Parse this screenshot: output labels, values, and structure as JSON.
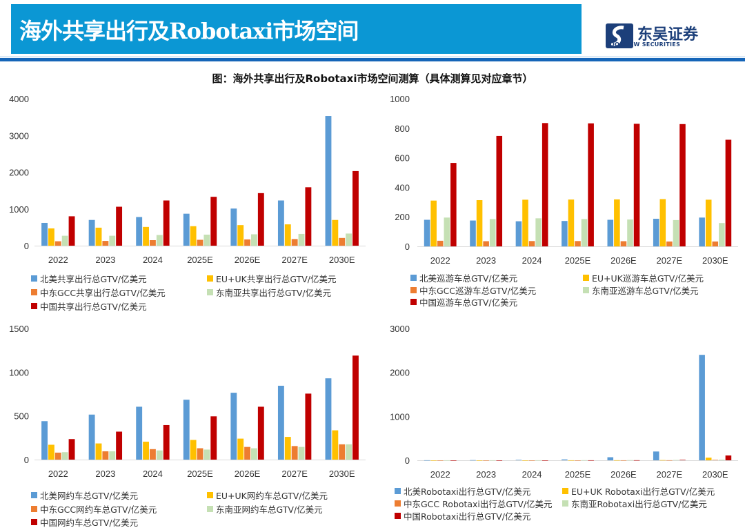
{
  "header": {
    "title": "海外共享出行及Robotaxi市场空间",
    "logo_cn": "东吴证券",
    "logo_en": "SOOCHOW SECURITIES"
  },
  "figure_title": "图：海外共享出行及Robotaxi市场空间测算（具体测算见对应章节）",
  "colors": {
    "banner": "#0b97d4",
    "rule": "#1565b8",
    "na": "#5b9bd5",
    "eu": "#ffc000",
    "gcc": "#ed7d31",
    "sea": "#c5e0b4",
    "cn": "#c00000"
  },
  "chart_data": [
    {
      "type": "bar",
      "categories": [
        "2022",
        "2023",
        "2024",
        "2025E",
        "2026E",
        "2027E",
        "2030E"
      ],
      "ylim": [
        0,
        4000
      ],
      "yticks": [
        "0",
        "1000",
        "2000",
        "3000",
        "4000"
      ],
      "legend_position": "bottom",
      "grid": false,
      "series": [
        {
          "name": "北美共享出行总GTV/亿美元",
          "color": "#5b9bd5",
          "values": [
            620,
            700,
            780,
            870,
            1010,
            1230,
            3530
          ]
        },
        {
          "name": "EU+UK共享出行总GTV/亿美元",
          "color": "#ffc000",
          "values": [
            470,
            490,
            510,
            530,
            560,
            580,
            700
          ]
        },
        {
          "name": "中东GCC共享出行总GTV/亿美元",
          "color": "#ed7d31",
          "values": [
            120,
            130,
            150,
            160,
            170,
            180,
            210
          ]
        },
        {
          "name": "东南亚共享出行总GTV/亿美元",
          "color": "#c5e0b4",
          "values": [
            270,
            270,
            290,
            300,
            310,
            320,
            330
          ]
        },
        {
          "name": "中国共享出行总GTV/亿美元",
          "color": "#c00000",
          "values": [
            800,
            1060,
            1230,
            1330,
            1430,
            1590,
            2030
          ]
        }
      ]
    },
    {
      "type": "bar",
      "categories": [
        "2022",
        "2023",
        "2024",
        "2025E",
        "2026E",
        "2027E",
        "2030E"
      ],
      "ylim": [
        0,
        1000
      ],
      "yticks": [
        "0",
        "200",
        "400",
        "600",
        "800",
        "1000"
      ],
      "legend_position": "bottom",
      "grid": false,
      "series": [
        {
          "name": "北美巡游车总GTV/亿美元",
          "color": "#5b9bd5",
          "values": [
            180,
            175,
            170,
            172,
            180,
            187,
            195
          ]
        },
        {
          "name": "EU+UK巡游车总GTV/亿美元",
          "color": "#ffc000",
          "values": [
            310,
            313,
            316,
            317,
            318,
            320,
            316
          ]
        },
        {
          "name": "中东GCC巡游车总GTV/亿美元",
          "color": "#ed7d31",
          "values": [
            38,
            35,
            36,
            36,
            35,
            33,
            33
          ]
        },
        {
          "name": "东南亚巡游车总GTV/亿美元",
          "color": "#c5e0b4",
          "values": [
            195,
            185,
            190,
            185,
            182,
            178,
            158
          ]
        },
        {
          "name": "中国巡游车总GTV/亿美元",
          "color": "#c00000",
          "values": [
            565,
            748,
            835,
            833,
            830,
            828,
            722
          ]
        }
      ]
    },
    {
      "type": "bar",
      "categories": [
        "2022",
        "2023",
        "2024",
        "2025E",
        "2026E",
        "2027E",
        "2030E"
      ],
      "ylim": [
        0,
        1500
      ],
      "yticks": [
        "0",
        "500",
        "1000",
        "1500"
      ],
      "legend_position": "bottom",
      "grid": false,
      "series": [
        {
          "name": "北美网约车总GTV/亿美元",
          "color": "#5b9bd5",
          "values": [
            440,
            515,
            605,
            685,
            765,
            845,
            930
          ]
        },
        {
          "name": "EU+UK网约车总GTV/亿美元",
          "color": "#ffc000",
          "values": [
            170,
            185,
            205,
            225,
            240,
            260,
            335
          ]
        },
        {
          "name": "中东GCC网约车总GTV/亿美元",
          "color": "#ed7d31",
          "values": [
            80,
            95,
            120,
            130,
            145,
            155,
            175
          ]
        },
        {
          "name": "东南亚网约车总GTV/亿美元",
          "color": "#c5e0b4",
          "values": [
            85,
            95,
            105,
            115,
            130,
            145,
            175
          ]
        },
        {
          "name": "中国网约车总GTV/亿美元",
          "color": "#c00000",
          "values": [
            235,
            320,
            395,
            495,
            605,
            755,
            1190
          ]
        }
      ]
    },
    {
      "type": "bar",
      "categories": [
        "2022",
        "2023",
        "2024",
        "2025E",
        "2026E",
        "2027E",
        "2030E"
      ],
      "ylim": [
        0,
        3000
      ],
      "yticks": [
        "0",
        "1000",
        "2000",
        "3000"
      ],
      "legend_position": "bottom",
      "grid": false,
      "series": [
        {
          "name": "北美Robotaxi出行总GTV/亿美元",
          "color": "#5b9bd5",
          "values": [
            2,
            5,
            10,
            20,
            70,
            200,
            2400
          ]
        },
        {
          "name": "EU+UK Robotaxi出行总GTV/亿美元",
          "color": "#ffc000",
          "values": [
            0,
            0,
            0,
            1,
            2,
            5,
            60
          ]
        },
        {
          "name": "中东GCC Robotaxi出行总GTV/亿美元",
          "color": "#ed7d31",
          "values": [
            0,
            0,
            0,
            0,
            1,
            2,
            10
          ]
        },
        {
          "name": "东南亚Robotaxi出行总GTV/亿美元",
          "color": "#c5e0b4",
          "values": [
            1,
            1,
            2,
            3,
            5,
            8,
            15
          ]
        },
        {
          "name": "中国Robotaxi出行总GTV/亿美元",
          "color": "#c00000",
          "values": [
            0,
            0,
            0,
            1,
            2,
            10,
            110
          ]
        }
      ]
    }
  ]
}
